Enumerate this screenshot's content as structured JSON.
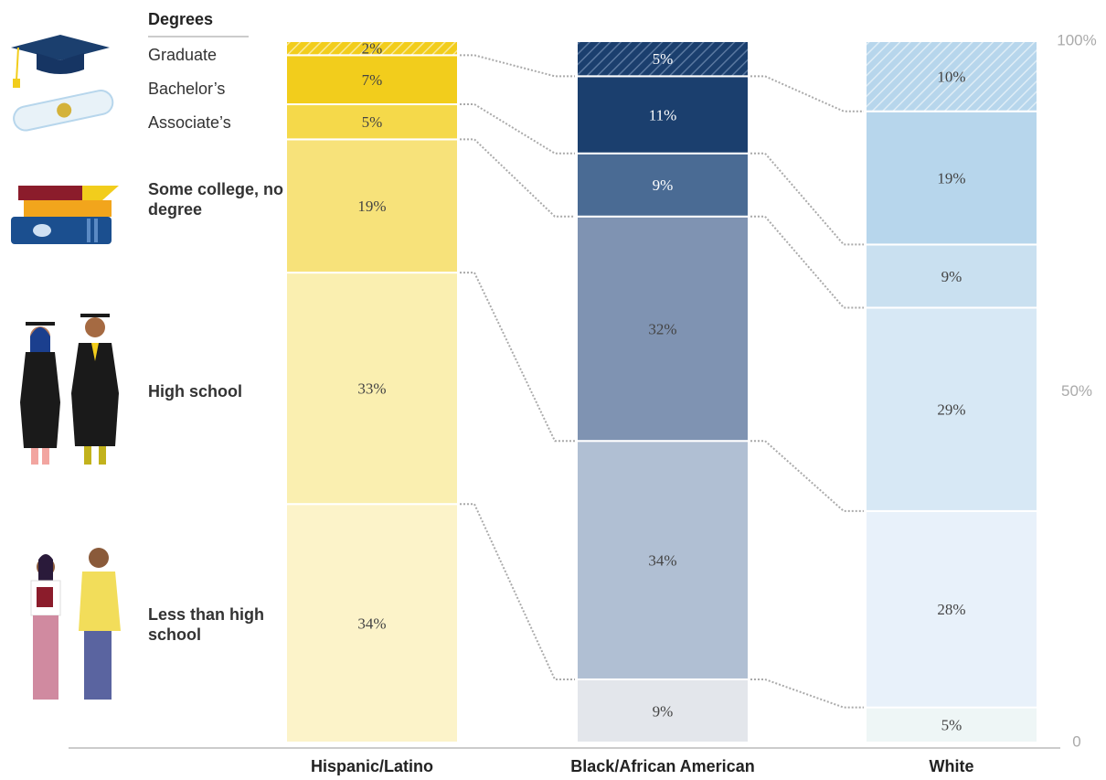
{
  "legend_title": "Degrees",
  "chart_data": {
    "type": "stacked-bar",
    "categories": [
      "Hispanic/Latino",
      "Black/African American",
      "White"
    ],
    "series": [
      {
        "name": "Less than high school",
        "values": [
          34,
          9,
          5
        ],
        "value_labels": [
          "34%",
          "9%",
          "5%"
        ],
        "colors": [
          "#fcf3c9",
          "#e3e6eb",
          "#eef6f6"
        ]
      },
      {
        "name": "High school",
        "values": [
          33,
          34,
          28
        ],
        "value_labels": [
          "33%",
          "34%",
          "28%"
        ],
        "colors": [
          "#faefb0",
          "#b0bfd3",
          "#e8f1fa"
        ]
      },
      {
        "name": "Some college, no degree",
        "values": [
          19,
          32,
          29
        ],
        "value_labels": [
          "19%",
          "32%",
          "29%"
        ],
        "colors": [
          "#f7e27a",
          "#7f93b2",
          "#d7e8f5"
        ]
      },
      {
        "name": "Associate’s",
        "values": [
          5,
          9,
          9
        ],
        "value_labels": [
          "5%",
          "9%",
          "9%"
        ],
        "colors": [
          "#f5d94a",
          "#4a6b94",
          "#c9e0f0"
        ]
      },
      {
        "name": "Bachelor’s",
        "values": [
          7,
          11,
          19
        ],
        "value_labels": [
          "7%",
          "11%",
          "19%"
        ],
        "colors": [
          "#f2cd1c",
          "#1b3f6e",
          "#b7d6ec"
        ]
      },
      {
        "name": "Graduate",
        "values": [
          2,
          5,
          10
        ],
        "value_labels": [
          "2%",
          "5%",
          "10%"
        ],
        "colors": [
          "#f2cd1c",
          "#1b3f6e",
          "#b7d6ec"
        ],
        "hatch": true
      }
    ],
    "ylim": [
      0,
      100
    ],
    "yticks": [
      0,
      {
        "value": 50,
        "label": "50%"
      },
      {
        "value": 100,
        "label": "100%"
      }
    ]
  }
}
